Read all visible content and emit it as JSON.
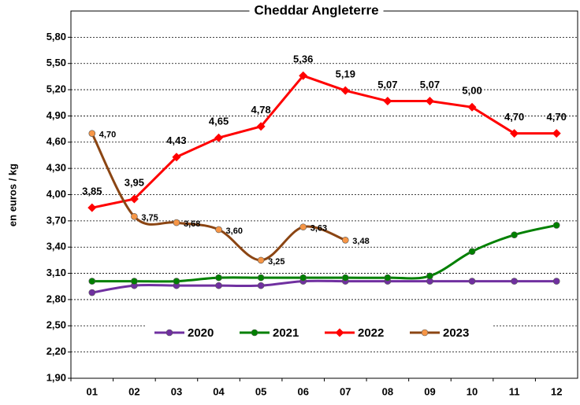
{
  "chart_data": {
    "type": "line",
    "title": "Cheddar Angleterre",
    "y_label": "en euros / kg",
    "categories": [
      "01",
      "02",
      "03",
      "04",
      "05",
      "06",
      "07",
      "08",
      "09",
      "10",
      "11",
      "12"
    ],
    "ylim": [
      1.9,
      6.1
    ],
    "yticks": [
      {
        "value": 1.9,
        "label": "1,90"
      },
      {
        "value": 2.2,
        "label": "2,20"
      },
      {
        "value": 2.5,
        "label": "2,50"
      },
      {
        "value": 2.8,
        "label": "2,80"
      },
      {
        "value": 3.1,
        "label": "3,10"
      },
      {
        "value": 3.4,
        "label": "3,40"
      },
      {
        "value": 3.7,
        "label": "3,70"
      },
      {
        "value": 4.0,
        "label": "4,00"
      },
      {
        "value": 4.3,
        "label": "4,30"
      },
      {
        "value": 4.6,
        "label": "4,60"
      },
      {
        "value": 4.9,
        "label": "4,90"
      },
      {
        "value": 5.2,
        "label": "5,20"
      },
      {
        "value": 5.5,
        "label": "5,50"
      },
      {
        "value": 5.8,
        "label": "5,80"
      }
    ],
    "grid": true,
    "series": [
      {
        "name": "2020",
        "color": "#7030a0",
        "marker_color": "#7030a0",
        "marker": "circle",
        "smooth": true,
        "values": [
          2.88,
          2.96,
          2.96,
          2.96,
          2.96,
          3.01,
          3.01,
          3.01,
          3.01,
          3.01,
          3.01,
          3.01
        ]
      },
      {
        "name": "2021",
        "color": "#008000",
        "marker_color": "#008000",
        "marker": "circle",
        "smooth": true,
        "values": [
          3.01,
          3.01,
          3.01,
          3.05,
          3.05,
          3.05,
          3.05,
          3.05,
          3.07,
          3.35,
          3.54,
          3.65
        ]
      },
      {
        "name": "2022",
        "color": "#ff0000",
        "marker_color": "#ff0000",
        "marker": "diamond",
        "smooth": false,
        "values": [
          3.85,
          3.95,
          4.43,
          4.65,
          4.78,
          5.36,
          5.19,
          5.07,
          5.07,
          5.0,
          4.7,
          4.7
        ],
        "value_labels": [
          "3,85",
          "3,95",
          "4,43",
          "4,65",
          "4,78",
          "5,36",
          "5,19",
          "5,07",
          "5,07",
          "5,00",
          "4,70",
          "4,70"
        ],
        "label_position": "above"
      },
      {
        "name": "2023",
        "color": "#8b4513",
        "marker_color": "#f79646",
        "marker": "circle",
        "smooth": true,
        "values": [
          4.7,
          3.75,
          3.68,
          3.6,
          3.25,
          3.63,
          3.48,
          null,
          null,
          null,
          null,
          null
        ],
        "value_labels": [
          "4,70",
          "3,75",
          "3,68",
          "3,60",
          "3,25",
          "3,63",
          "3,48",
          null,
          null,
          null,
          null,
          null
        ],
        "label_position": "right"
      }
    ]
  }
}
